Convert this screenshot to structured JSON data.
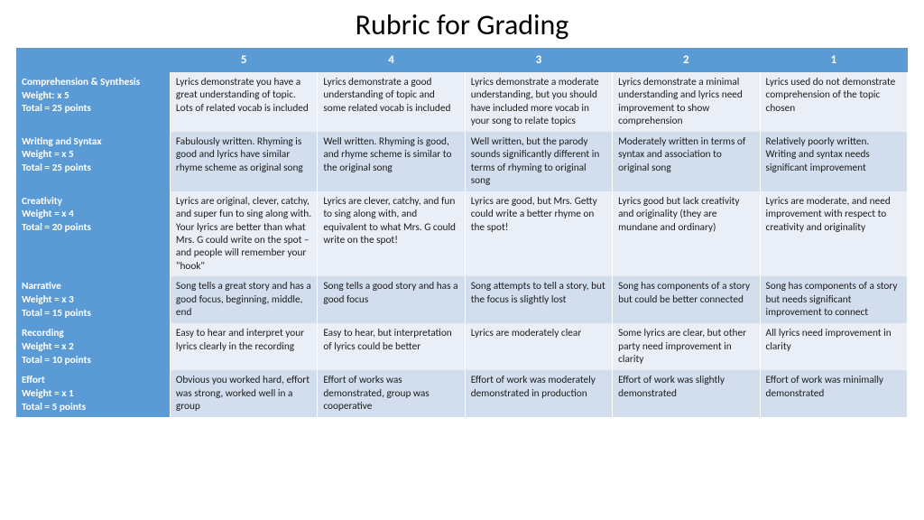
{
  "title": "Rubric for Grading",
  "colors": {
    "header_bg": "#5b9bd5",
    "header_fg": "#ffffff",
    "row_odd": "#eaeff7",
    "row_even": "#d2deee"
  },
  "scores": [
    "5",
    "4",
    "3",
    "2",
    "1"
  ],
  "categories": [
    {
      "name": "Comprehension & Synthesis",
      "weight": "Weight: x 5",
      "total": "Total = 25 points",
      "cells": [
        "Lyrics demonstrate you have a great understanding of topic.  Lots of related vocab is included",
        "Lyrics demonstrate a good understanding of topic and some related vocab is included",
        "Lyrics demonstrate a moderate understanding, but you should have included more vocab in your song to relate topics",
        "Lyrics demonstrate a minimal understanding and lyrics need improvement to show comprehension",
        "Lyrics used do not demonstrate comprehension of the topic chosen"
      ]
    },
    {
      "name": "Writing and Syntax",
      "weight": "Weight = x 5",
      "total": "Total = 25 points",
      "cells": [
        "Fabulously written.  Rhyming is good and lyrics have similar rhyme scheme as original song",
        "Well written.  Rhyming is good, and rhyme scheme is similar to the original song",
        "Well written, but the parody sounds significantly different in terms of rhyming to original song",
        "Moderately written in terms of syntax and association to original song",
        "Relatively poorly written.  Writing and syntax needs significant improvement"
      ]
    },
    {
      "name": "Creativity",
      "weight": "Weight = x 4",
      "total": "Total = 20 points",
      "cells": [
        "Lyrics are original, clever, catchy, and super fun to sing along with.  Your lyrics are better than what Mrs. G could write on the spot – and people will remember your \"hook\"",
        "Lyrics are clever, catchy, and fun to sing along with, and equivalent to what Mrs. G could write on the spot!",
        "Lyrics are good, but Mrs. Getty could write a better rhyme on the spot!",
        "Lyrics good but lack creativity and originality (they are mundane and ordinary)",
        "Lyrics are moderate, and need improvement with respect to creativity and originality"
      ]
    },
    {
      "name": "Narrative",
      "weight": "Weight = x 3",
      "total": "Total = 15 points",
      "cells": [
        "Song tells a great story and has a good focus, beginning, middle, end",
        "Song tells a good story and has a good focus",
        "Song attempts to tell a story, but the focus is slightly lost",
        "Song has components of a story but could be better connected",
        "Song has components of a story but needs significant improvement  to connect"
      ]
    },
    {
      "name": "Recording",
      "weight": "Weight = x 2",
      "total": "Total = 10 points",
      "cells": [
        "Easy to hear and interpret your lyrics clearly in the recording",
        "Easy to hear, but interpretation of lyrics could be better",
        "Lyrics are moderately clear",
        "Some lyrics are clear, but other party need improvement in clarity",
        "All lyrics need improvement in clarity"
      ]
    },
    {
      "name": "Effort",
      "weight": "Weight = x 1",
      "total": "Total = 5 points",
      "cells": [
        "Obvious you worked hard,  effort was strong, worked well in a group",
        "Effort of works was demonstrated, group was cooperative",
        "Effort of work was moderately demonstrated in production",
        "Effort of work was slightly demonstrated",
        "Effort of work was minimally demonstrated"
      ]
    }
  ]
}
